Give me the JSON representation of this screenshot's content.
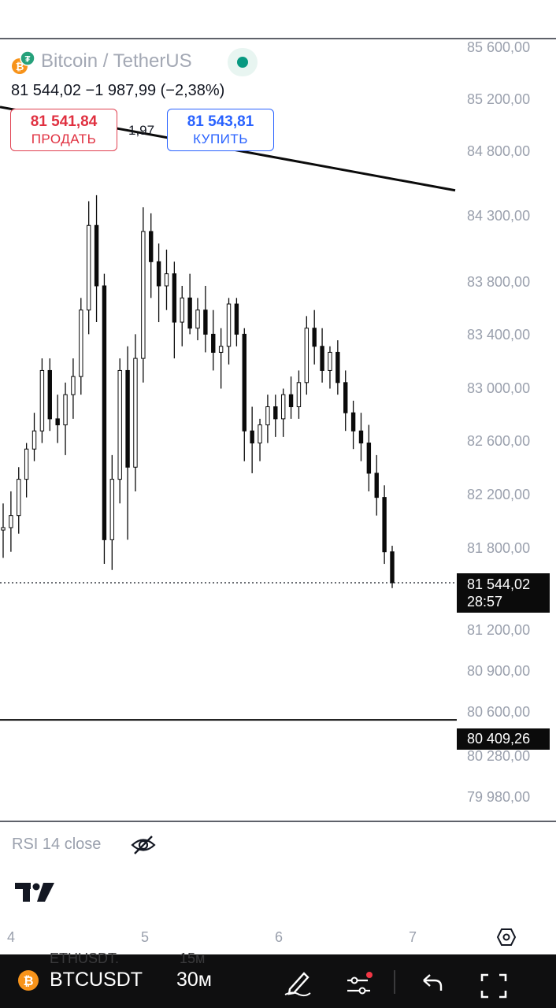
{
  "symbol": {
    "title": "Bitcoin / TetherUS",
    "price_line": "81 544,02 −1 987,99 (−2,38%)",
    "status_color": "#089981",
    "coin_icon": "bitcoin-icon"
  },
  "trade": {
    "sell_price": "81 541,84",
    "sell_label": "ПРОДАТЬ",
    "spread": "1,97",
    "buy_price": "81 543,81",
    "buy_label": "КУПИТЬ",
    "sell_color": "#e03040",
    "buy_color": "#2962ff"
  },
  "price_scale": {
    "labels": [
      "85 600,00",
      "85 200,00",
      "84 800,00",
      "84 300,00",
      "83 800,00",
      "83 400,00",
      "83 000,00",
      "82 600,00",
      "82 200,00",
      "81 800,00",
      "81 200,00",
      "80 900,00",
      "80 600,00",
      "80 280,00",
      "79 980,00"
    ],
    "last_price": "81 544,02",
    "countdown": "28:57",
    "level_price": "80 409,26"
  },
  "indicator": {
    "name": "RSI 14 close",
    "visibility_icon": "eye-off-icon"
  },
  "time_scale": {
    "labels": [
      "4",
      "5",
      "6",
      "7"
    ],
    "settings_icon": "hexagon-settings-icon"
  },
  "branding": {
    "logo": "tradingview-logo"
  },
  "bottom_bar": {
    "ghost_symbol": "ETHUSDT.",
    "ghost_tf": "15м",
    "symbol": "BTCUSDT",
    "timeframe": "30м",
    "icons": [
      "bitcoin-icon",
      "pen-draw-icon",
      "indicator-settings-icon",
      "undo-icon",
      "fullscreen-icon"
    ]
  },
  "chart_data": {
    "type": "candlestick",
    "price_unit": "USDT",
    "last_price": 81544.02,
    "horizontal_level": 80409.26,
    "trendline": {
      "start": {
        "x": 0,
        "y": 85480
      },
      "end": {
        "x": 1,
        "y": 84790
      }
    },
    "candles": [
      [
        81980,
        82200,
        81750,
        82000
      ],
      [
        82000,
        82300,
        81800,
        82100
      ],
      [
        82100,
        82500,
        81950,
        82400
      ],
      [
        82400,
        82700,
        82250,
        82650
      ],
      [
        82650,
        82950,
        82550,
        82800
      ],
      [
        82800,
        83400,
        82700,
        83300
      ],
      [
        83300,
        83400,
        82800,
        82900
      ],
      [
        82900,
        83100,
        82700,
        82850
      ],
      [
        82850,
        83200,
        82600,
        83100
      ],
      [
        83100,
        83400,
        82900,
        83250
      ],
      [
        83250,
        83900,
        83100,
        83800
      ],
      [
        83800,
        84700,
        83600,
        84500
      ],
      [
        84500,
        84750,
        83700,
        84000
      ],
      [
        84000,
        84100,
        81700,
        81900
      ],
      [
        81900,
        82600,
        81650,
        82400
      ],
      [
        82400,
        83400,
        82200,
        83300
      ],
      [
        83300,
        83500,
        81900,
        82500
      ],
      [
        82500,
        83600,
        82300,
        83400
      ],
      [
        83400,
        84650,
        83200,
        84450
      ],
      [
        84450,
        84600,
        83900,
        84200
      ],
      [
        84200,
        84350,
        83700,
        84000
      ],
      [
        84000,
        84300,
        83800,
        84100
      ],
      [
        84100,
        84200,
        83400,
        83700
      ],
      [
        83700,
        84000,
        83500,
        83900
      ],
      [
        83900,
        84100,
        83600,
        83650
      ],
      [
        83650,
        83900,
        83550,
        83800
      ],
      [
        83800,
        84000,
        83450,
        83600
      ],
      [
        83600,
        83800,
        83300,
        83450
      ],
      [
        83450,
        83650,
        83150,
        83500
      ],
      [
        83500,
        83900,
        83350,
        83850
      ],
      [
        83850,
        83900,
        83500,
        83600
      ],
      [
        83600,
        83650,
        82550,
        82800
      ],
      [
        82800,
        83000,
        82450,
        82700
      ],
      [
        82700,
        82900,
        82550,
        82850
      ],
      [
        82850,
        83100,
        82700,
        83000
      ],
      [
        83000,
        83100,
        82750,
        82900
      ],
      [
        82900,
        83150,
        82750,
        83100
      ],
      [
        83100,
        83250,
        82900,
        83000
      ],
      [
        83000,
        83300,
        82900,
        83200
      ],
      [
        83200,
        83750,
        83100,
        83650
      ],
      [
        83650,
        83800,
        83350,
        83500
      ],
      [
        83500,
        83650,
        83200,
        83300
      ],
      [
        83300,
        83500,
        83150,
        83450
      ],
      [
        83450,
        83550,
        83100,
        83200
      ],
      [
        83200,
        83300,
        82800,
        82950
      ],
      [
        82950,
        83050,
        82650,
        82800
      ],
      [
        82800,
        82950,
        82550,
        82700
      ],
      [
        82700,
        82850,
        82300,
        82450
      ],
      [
        82450,
        82600,
        82100,
        82250
      ],
      [
        82250,
        82350,
        81700,
        81800
      ],
      [
        81800,
        81850,
        81500,
        81544.02
      ]
    ]
  }
}
